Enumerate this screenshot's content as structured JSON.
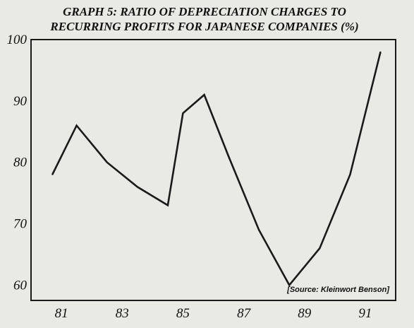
{
  "chart_data": {
    "type": "line",
    "title_lines": [
      "GRAPH 5: RATIO OF DEPRECIATION CHARGES TO",
      "RECURRING PROFITS FOR JAPANESE COMPANIES (%)"
    ],
    "xlabel": "",
    "ylabel": "",
    "x": [
      1980.7,
      1981.5,
      1982.5,
      1983.5,
      1984.5,
      1985.0,
      1985.7,
      1986.5,
      1987.5,
      1988.5,
      1989.5,
      1990.5,
      1991.5
    ],
    "values": [
      78,
      86,
      80,
      76,
      73,
      88,
      91,
      81,
      69,
      60,
      66,
      78,
      98
    ],
    "x_ticks": [
      81,
      83,
      85,
      87,
      89,
      91
    ],
    "x_tick_labels": [
      "81",
      "83",
      "85",
      "87",
      "89",
      "91"
    ],
    "y_ticks": [
      60,
      70,
      80,
      90,
      100
    ],
    "y_tick_labels": [
      "60",
      "70",
      "80",
      "90",
      "100"
    ],
    "xlim": [
      1980.0,
      1992.0
    ],
    "ylim": [
      57.5,
      100
    ],
    "grid": false,
    "legend": "none",
    "source_note": "[Source: Kleinwort Benson]",
    "line_color": "#1a1a1a"
  }
}
